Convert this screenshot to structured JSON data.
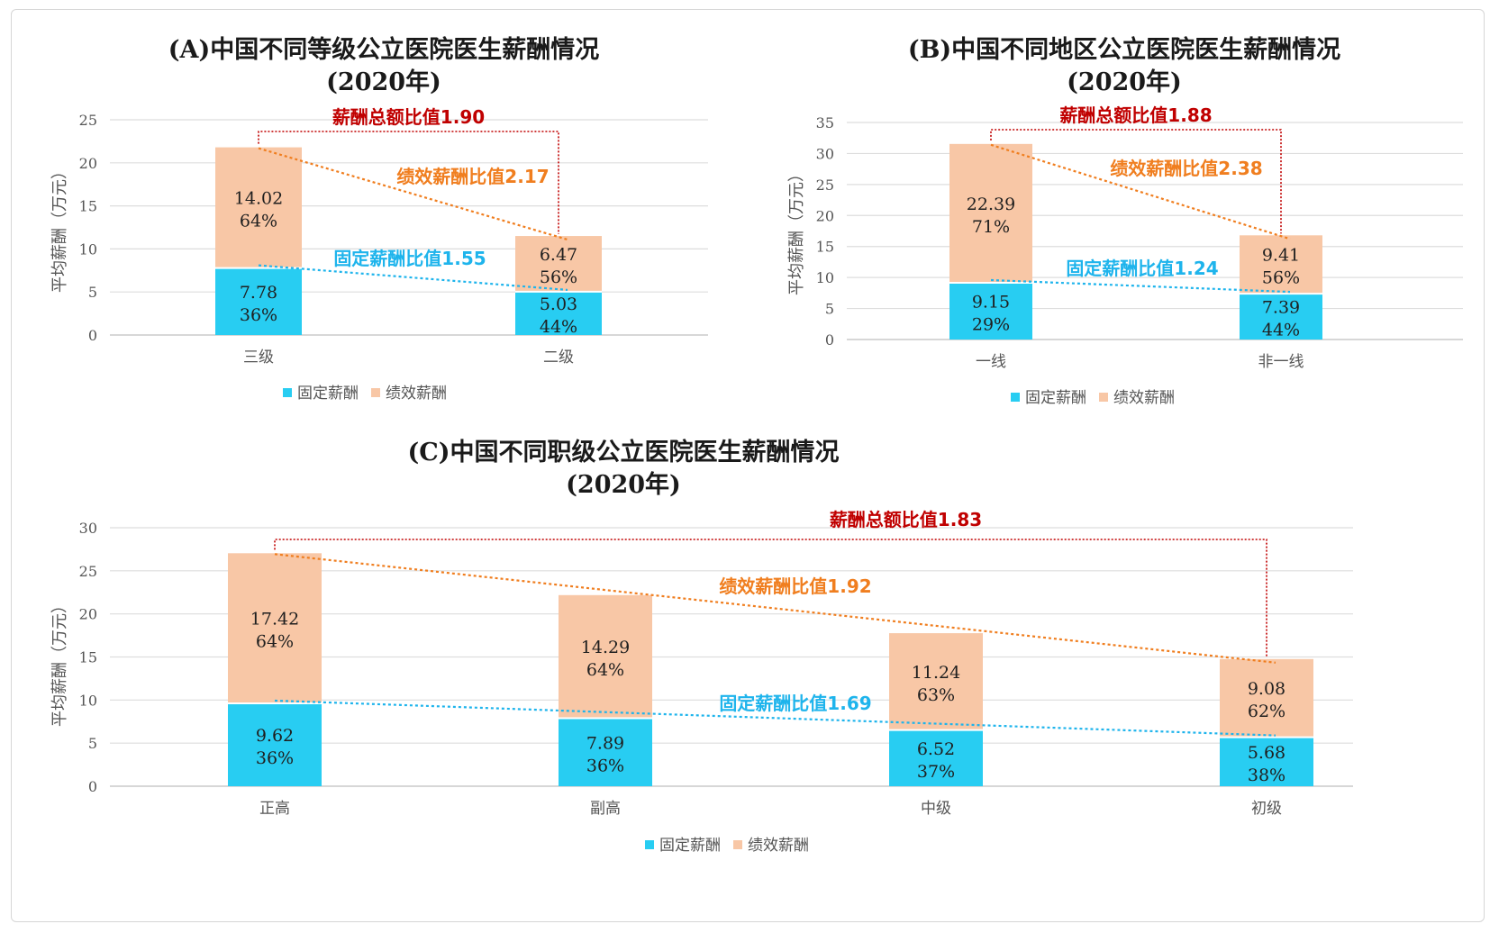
{
  "colors": {
    "fixed": "#28cdf2",
    "performance": "#f8c7a6",
    "total_ratio": "#c00000",
    "perf_ratio": "#f07e1f",
    "fixed_ratio": "#1eb4ec",
    "grid": "#dddddd",
    "axis_text": "#555555"
  },
  "chart_data": [
    {
      "id": "A",
      "type": "bar",
      "stacked": true,
      "title_line1": "(A)中国不同等级公立医院医生薪酬情况",
      "title_line2": "(2020年)",
      "ylabel": "平均薪酬（万元）",
      "ylim": [
        0,
        25
      ],
      "ytick_step": 5,
      "yticks": [
        "0",
        "5",
        "10",
        "15",
        "20",
        "25"
      ],
      "categories": [
        "三级",
        "二级"
      ],
      "series": [
        {
          "key": "fixed",
          "name": "固定薪酬",
          "values": [
            7.78,
            5.03
          ],
          "labels": [
            "7.78",
            "5.03"
          ],
          "pcts": [
            "36%",
            "44%"
          ]
        },
        {
          "key": "performance",
          "name": "绩效薪酬",
          "values": [
            14.02,
            6.47
          ],
          "labels": [
            "14.02",
            "6.47"
          ],
          "pcts": [
            "64%",
            "56%"
          ]
        }
      ],
      "annotations": {
        "total_ratio": "薪酬总额比值1.90",
        "perf_ratio": "绩效薪酬比值2.17",
        "fixed_ratio": "固定薪酬比值1.55"
      },
      "legend": [
        "固定薪酬",
        "绩效薪酬"
      ]
    },
    {
      "id": "B",
      "type": "bar",
      "stacked": true,
      "title_line1": "(B)中国不同地区公立医院医生薪酬情况",
      "title_line2": "(2020年)",
      "ylabel": "平均薪酬（万元）",
      "ylim": [
        0,
        35
      ],
      "ytick_step": 5,
      "yticks": [
        "0",
        "5",
        "10",
        "15",
        "20",
        "25",
        "30",
        "35"
      ],
      "categories": [
        "一线",
        "非一线"
      ],
      "series": [
        {
          "key": "fixed",
          "name": "固定薪酬",
          "values": [
            9.15,
            7.39
          ],
          "labels": [
            "9.15",
            "7.39"
          ],
          "pcts": [
            "29%",
            "44%"
          ]
        },
        {
          "key": "performance",
          "name": "绩效薪酬",
          "values": [
            22.39,
            9.41
          ],
          "labels": [
            "22.39",
            "9.41"
          ],
          "pcts": [
            "71%",
            "56%"
          ]
        }
      ],
      "annotations": {
        "total_ratio": "薪酬总额比值1.88",
        "perf_ratio": "绩效薪酬比值2.38",
        "fixed_ratio": "固定薪酬比值1.24"
      },
      "legend": [
        "固定薪酬",
        "绩效薪酬"
      ]
    },
    {
      "id": "C",
      "type": "bar",
      "stacked": true,
      "title_line1": "(C)中国不同职级公立医院医生薪酬情况",
      "title_line2": "(2020年)",
      "ylabel": "平均薪酬（万元）",
      "ylim": [
        0,
        30
      ],
      "ytick_step": 5,
      "yticks": [
        "0",
        "5",
        "10",
        "15",
        "20",
        "25",
        "30"
      ],
      "categories": [
        "正高",
        "副高",
        "中级",
        "初级"
      ],
      "series": [
        {
          "key": "fixed",
          "name": "固定薪酬",
          "values": [
            9.62,
            7.89,
            6.52,
            5.68
          ],
          "labels": [
            "9.62",
            "7.89",
            "6.52",
            "5.68"
          ],
          "pcts": [
            "36%",
            "36%",
            "37%",
            "38%"
          ]
        },
        {
          "key": "performance",
          "name": "绩效薪酬",
          "values": [
            17.42,
            14.29,
            11.24,
            9.08
          ],
          "labels": [
            "17.42",
            "14.29",
            "11.24",
            "9.08"
          ],
          "pcts": [
            "64%",
            "64%",
            "63%",
            "62%"
          ]
        }
      ],
      "annotations": {
        "total_ratio": "薪酬总额比值1.83",
        "perf_ratio": "绩效薪酬比值1.92",
        "fixed_ratio": "固定薪酬比值1.69"
      },
      "legend": [
        "固定薪酬",
        "绩效薪酬"
      ]
    }
  ]
}
